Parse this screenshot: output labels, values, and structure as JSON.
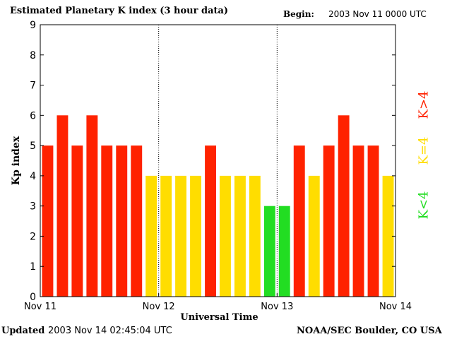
{
  "header": {
    "title": "Estimated Planetary K index (3 hour data)",
    "begin_label": "Begin:",
    "begin_value": "2003 Nov 11 0000 UTC"
  },
  "footer": {
    "updated_label": "Updated",
    "updated_value": "2003 Nov 14 02:45:04 UTC",
    "source": "NOAA/SEC Boulder, CO USA"
  },
  "legend": [
    {
      "label": "K>4",
      "color": "#ff2200"
    },
    {
      "label": "K=4",
      "color": "#ffdd00"
    },
    {
      "label": "K<4",
      "color": "#22dd22"
    }
  ],
  "colors": {
    "high": "#ff2200",
    "equal": "#ffdd00",
    "low": "#22dd22"
  },
  "chart_data": {
    "type": "bar",
    "title": "Estimated Planetary K index (3 hour data)",
    "xlabel": "Universal Time",
    "ylabel": "Kp index",
    "ylim": [
      0,
      9
    ],
    "yticks": [
      0,
      1,
      2,
      3,
      4,
      5,
      6,
      7,
      8,
      9
    ],
    "xticks": [
      "Nov 11",
      "Nov 12",
      "Nov 13",
      "Nov 14"
    ],
    "day_separators": [
      "Nov 12",
      "Nov 13"
    ],
    "values": [
      5,
      6,
      5,
      6,
      5,
      5,
      5,
      4,
      4,
      4,
      4,
      5,
      4,
      4,
      4,
      3,
      3,
      5,
      4,
      5,
      6,
      5,
      5,
      4
    ]
  }
}
